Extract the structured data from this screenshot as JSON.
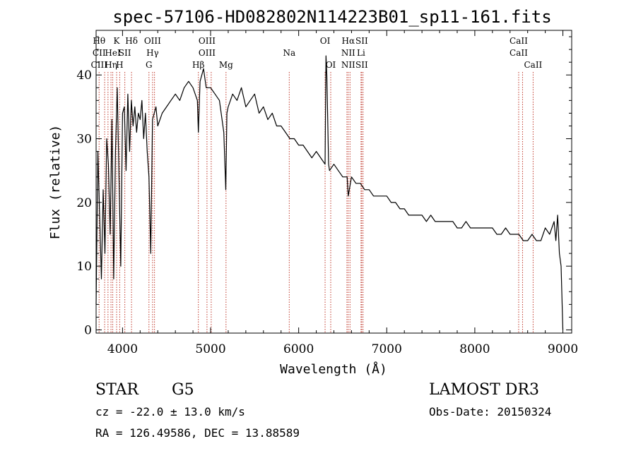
{
  "chart_data": {
    "type": "line",
    "title": "spec-57106-HD082802N114223B01_sp11-161.fits",
    "xlabel": "Wavelength (Å)",
    "ylabel": "Flux (relative)",
    "xlim": [
      3700,
      9100
    ],
    "ylim": [
      -0.5,
      47
    ],
    "xticks": [
      4000,
      5000,
      6000,
      7000,
      8000,
      9000
    ],
    "yticks": [
      0,
      10,
      20,
      30,
      40
    ],
    "grid": false,
    "series": [
      {
        "x": [
          3700,
          3720,
          3740,
          3760,
          3780,
          3800,
          3820,
          3840,
          3860,
          3880,
          3900,
          3920,
          3940,
          3960,
          3980,
          4000,
          4020,
          4040,
          4060,
          4080,
          4100,
          4120,
          4140,
          4160,
          4180,
          4200,
          4220,
          4240,
          4260,
          4280,
          4300,
          4320,
          4340,
          4360,
          4380,
          4400,
          4450,
          4500,
          4550,
          4600,
          4650,
          4700,
          4750,
          4800,
          4850,
          4861,
          4880,
          4900,
          4920,
          4950,
          5000,
          5050,
          5100,
          5150,
          5172,
          5185,
          5200,
          5250,
          5300,
          5350,
          5400,
          5450,
          5500,
          5550,
          5600,
          5650,
          5700,
          5750,
          5800,
          5850,
          5900,
          5950,
          6000,
          6050,
          6100,
          6150,
          6200,
          6250,
          6300,
          6310,
          6320,
          6340,
          6350,
          6400,
          6450,
          6500,
          6550,
          6563,
          6600,
          6650,
          6700,
          6750,
          6800,
          6850,
          6900,
          6950,
          7000,
          7050,
          7100,
          7150,
          7200,
          7250,
          7300,
          7350,
          7400,
          7450,
          7500,
          7550,
          7600,
          7650,
          7700,
          7750,
          7800,
          7850,
          7900,
          7950,
          8000,
          8050,
          8100,
          8150,
          8200,
          8250,
          8300,
          8350,
          8400,
          8450,
          8500,
          8550,
          8600,
          8650,
          8700,
          8750,
          8800,
          8850,
          8900,
          8920,
          8940,
          8960,
          8980,
          9000
        ],
        "y": [
          4,
          28,
          18,
          8,
          22,
          12,
          30,
          26,
          15,
          33,
          8,
          28,
          38,
          24,
          10,
          34,
          35,
          25,
          37,
          28,
          36,
          32,
          35,
          31,
          34,
          33,
          36,
          30,
          34,
          28,
          24,
          12,
          33,
          34,
          35,
          32,
          34,
          35,
          36,
          37,
          36,
          38,
          39,
          38,
          36,
          31,
          39,
          40,
          41,
          38,
          38,
          37,
          36,
          31,
          22,
          34,
          35,
          37,
          36,
          38,
          35,
          36,
          37,
          34,
          35,
          33,
          34,
          32,
          32,
          31,
          30,
          30,
          29,
          29,
          28,
          27,
          28,
          27,
          26,
          43,
          40,
          26,
          25,
          26,
          25,
          24,
          24,
          21,
          24,
          23,
          23,
          22,
          22,
          21,
          21,
          21,
          21,
          20,
          20,
          19,
          19,
          18,
          18,
          18,
          18,
          17,
          18,
          17,
          17,
          17,
          17,
          17,
          16,
          16,
          17,
          16,
          16,
          16,
          16,
          16,
          16,
          15,
          15,
          16,
          15,
          15,
          15,
          14,
          14,
          15,
          14,
          14,
          16,
          15,
          17,
          14,
          18,
          12,
          10,
          0
        ]
      }
    ],
    "lines": [
      {
        "x": 3734,
        "labels": [
          "Hθ",
          "CII",
          "CIII"
        ]
      },
      {
        "x": 3797,
        "labels": [
          "",
          "",
          ""
        ]
      },
      {
        "x": 3835,
        "labels": [
          "",
          "",
          ""
        ]
      },
      {
        "x": 3869,
        "labels": [
          "",
          "",
          "Hη"
        ]
      },
      {
        "x": 3889,
        "labels": [
          "",
          "HeI",
          ""
        ]
      },
      {
        "x": 3933,
        "labels": [
          "K",
          "",
          ""
        ]
      },
      {
        "x": 3968,
        "labels": [
          "",
          "",
          "H"
        ]
      },
      {
        "x": 4026,
        "labels": [
          "",
          "SII",
          ""
        ]
      },
      {
        "x": 4102,
        "labels": [
          "Hδ",
          "",
          ""
        ]
      },
      {
        "x": 4300,
        "labels": [
          "",
          "",
          "G"
        ]
      },
      {
        "x": 4341,
        "labels": [
          "OIII",
          "Hγ",
          ""
        ]
      },
      {
        "x": 4363,
        "labels": [
          "",
          "",
          ""
        ]
      },
      {
        "x": 4861,
        "labels": [
          "",
          "",
          "Hβ"
        ]
      },
      {
        "x": 4959,
        "labels": [
          "OIII",
          "OIII",
          ""
        ]
      },
      {
        "x": 5007,
        "labels": [
          "",
          "",
          ""
        ]
      },
      {
        "x": 5175,
        "labels": [
          "",
          "",
          "Mg"
        ]
      },
      {
        "x": 5893,
        "labels": [
          "",
          "Na",
          ""
        ]
      },
      {
        "x": 6300,
        "labels": [
          "OI",
          "",
          ""
        ]
      },
      {
        "x": 6364,
        "labels": [
          "",
          "",
          "OI"
        ]
      },
      {
        "x": 6548,
        "labels": [
          "",
          "",
          ""
        ]
      },
      {
        "x": 6563,
        "labels": [
          "Hα",
          "NII",
          "NII"
        ]
      },
      {
        "x": 6583,
        "labels": [
          "",
          "",
          ""
        ]
      },
      {
        "x": 6708,
        "labels": [
          "",
          "Li",
          ""
        ]
      },
      {
        "x": 6716,
        "labels": [
          "SII",
          "",
          "SII"
        ]
      },
      {
        "x": 6731,
        "labels": [
          "",
          "",
          ""
        ]
      },
      {
        "x": 8498,
        "labels": [
          "CaII",
          "CaII",
          ""
        ]
      },
      {
        "x": 8542,
        "labels": [
          "",
          "",
          ""
        ]
      },
      {
        "x": 8662,
        "labels": [
          "",
          "",
          "CaII"
        ]
      }
    ]
  },
  "info": {
    "object_class": "STAR",
    "subclass": "G5",
    "survey": "LAMOST DR3",
    "redshift": "cz = -22.0 ± 13.0 km/s",
    "obs_date": "Obs-Date: 20150324",
    "coords": "RA = 126.49586, DEC =  13.88589"
  }
}
